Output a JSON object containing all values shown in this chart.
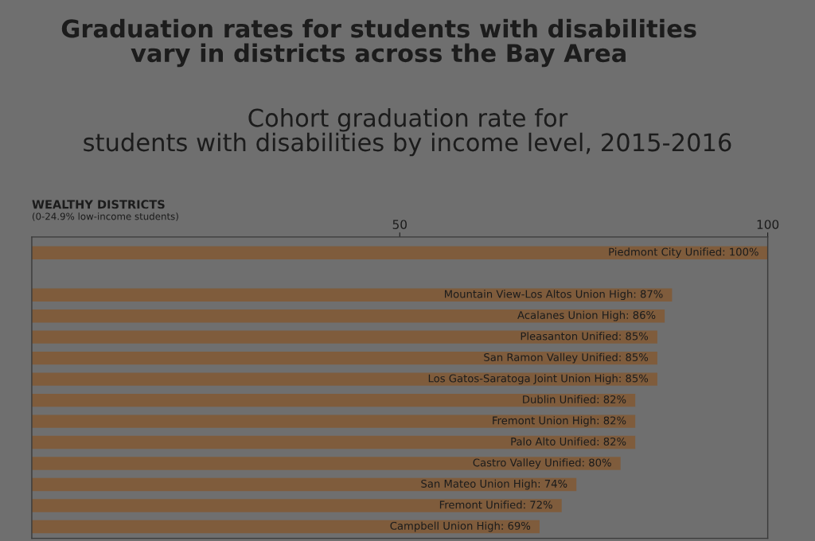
{
  "chart_data": {
    "type": "bar",
    "orientation": "horizontal",
    "title": "Graduation rates for students with disabilities\nvary in districts across the Bay Area",
    "subtitle": "Cohort graduation rate for\nstudents with disabilities by income level, 2015-2016",
    "annotations": [
      "WEALTHY DISTRICTS",
      "(0-24.9% low-income students)"
    ],
    "categories": [
      null,
      null,
      null,
      null,
      null,
      null,
      null,
      null,
      null,
      null,
      null,
      null,
      null,
      null
    ],
    "values": [
      100,
      null,
      87,
      86,
      85,
      85,
      85,
      82,
      82,
      82,
      80,
      74,
      72,
      69
    ],
    "value_labels": [
      "Piedmont City Unified: 100%",
      null,
      "Mountain View-Los Altos Union High: 87%",
      "Acalanes Union High: 86%",
      "Pleasanton Unified: 85%",
      "San Ramon Valley Unified: 85%",
      "Los Gatos-Saratoga Joint Union High: 85%",
      "Dublin Unified: 82%",
      "Fremont Union High: 82%",
      "Palo Alto Unified: 82%",
      "Castro Valley Unified: 80%",
      "San Mateo Union High: 74%",
      "Fremont Unified: 72%",
      "Campbell Union High: 69%"
    ],
    "color": "#7f5c3c",
    "xlim": [
      0,
      100
    ],
    "xticks": [
      50,
      100
    ],
    "grid": false,
    "legend": false
  }
}
